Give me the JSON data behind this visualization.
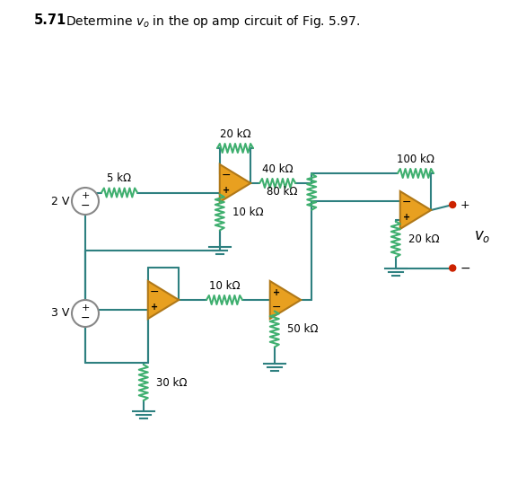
{
  "title_bold": "5.71",
  "title_rest": "Determine $v_o$ in the op amp circuit of Fig. 5.97.",
  "wire_color": "#2e8080",
  "resistor_color": "#3faf6f",
  "opamp_face": "#e8a020",
  "opamp_edge": "#b07818",
  "source_edge": "#888888",
  "terminal_color": "#cc2200",
  "labels": {
    "R1": "5 kΩ",
    "R2": "20 kΩ",
    "R3": "10 kΩ",
    "R4": "40 kΩ",
    "R5": "80 kΩ",
    "R6": "100 kΩ",
    "R7": "20 kΩ",
    "R8": "10 kΩ",
    "R9": "30 kΩ",
    "R10": "50 kΩ",
    "V1": "2 V",
    "V2": "3 V",
    "Vo": "$v_o$"
  }
}
